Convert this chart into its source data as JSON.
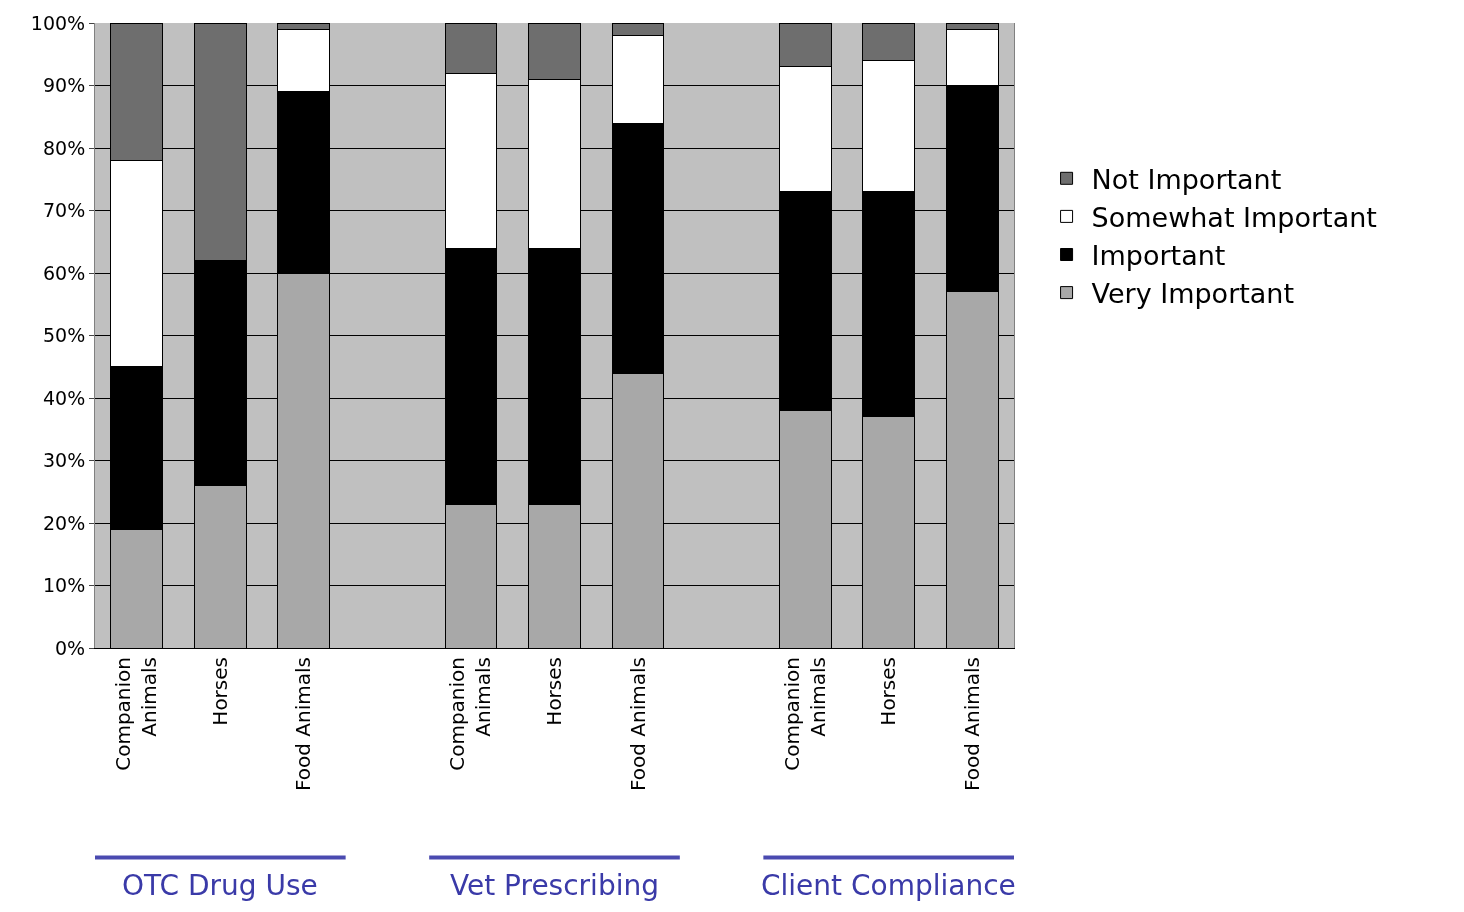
{
  "chart_data": {
    "type": "bar",
    "stacked": true,
    "categories": [
      "Companion Animals",
      "Horses",
      "Food Animals",
      null,
      "Companion Animals",
      "Horses",
      "Food Animals",
      null,
      "Companion Animals",
      "Horses",
      "Food Animals"
    ],
    "series": [
      {
        "name": "Very Important",
        "color": "#a8a8a8",
        "values": [
          19,
          26,
          60,
          null,
          23,
          23,
          44,
          null,
          38,
          37,
          57
        ]
      },
      {
        "name": "Important",
        "color": "#000000",
        "values": [
          26,
          36,
          29,
          null,
          41,
          41,
          40,
          null,
          35,
          36,
          33
        ]
      },
      {
        "name": "Somewhat Important",
        "color": "#ffffff",
        "values": [
          33,
          0,
          10,
          null,
          28,
          27,
          14,
          null,
          20,
          21,
          9
        ]
      },
      {
        "name": "Not Important",
        "color": "#6e6e6e",
        "values": [
          22,
          38,
          1,
          null,
          8,
          9,
          2,
          null,
          7,
          6,
          1
        ]
      }
    ],
    "ylim": [
      0,
      100
    ],
    "yticks": [
      {
        "value": 0,
        "label": "0%"
      },
      {
        "value": 10,
        "label": "10%"
      },
      {
        "value": 20,
        "label": "20%"
      },
      {
        "value": 30,
        "label": "30%"
      },
      {
        "value": 40,
        "label": "40%"
      },
      {
        "value": 50,
        "label": "50%"
      },
      {
        "value": 60,
        "label": "60%"
      },
      {
        "value": 70,
        "label": "70%"
      },
      {
        "value": 80,
        "label": "80%"
      },
      {
        "value": 90,
        "label": "90%"
      },
      {
        "value": 100,
        "label": "100%"
      }
    ],
    "grid": "y",
    "legend": "right",
    "annotations": [
      "OTC Drug Use",
      "Vet Prescribing",
      "Client Compliance"
    ]
  }
}
